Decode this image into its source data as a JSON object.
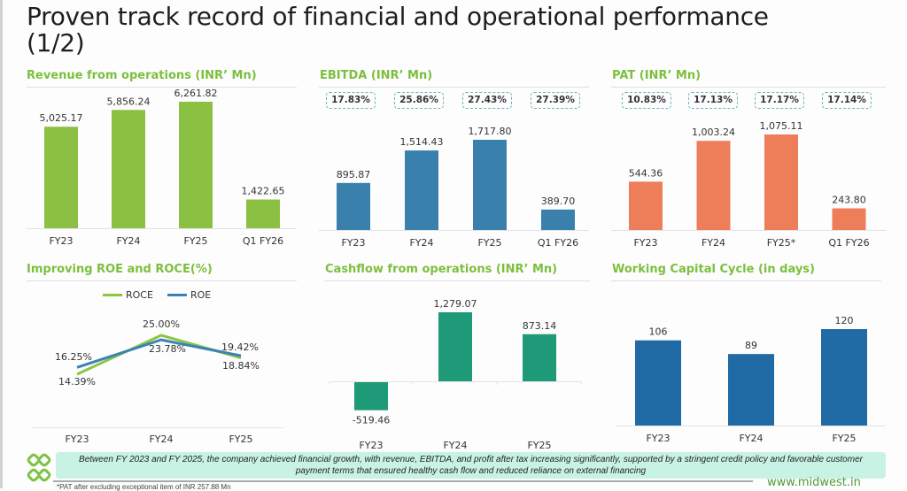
{
  "page": {
    "title_line1": "Proven track record of financial and operational performance",
    "title_line2": "(1/2)"
  },
  "colors": {
    "accent_green": "#7cbf3d",
    "revenue_bar": "#8bc043",
    "ebitda_bar": "#3a80ad",
    "pat_bar": "#ee7d59",
    "cashflow_bar": "#1f9a78",
    "wcc_bar": "#206aa6",
    "roce_line": "#8bc643",
    "roe_line": "#3b82b5",
    "margin_box_border": "#6bb5b9",
    "footer_box": "#c7f2e4"
  },
  "chart_data": [
    {
      "id": "revenue",
      "type": "bar",
      "title": "Revenue from operations (INR’ Mn)",
      "categories": [
        "FY23",
        "FY24",
        "FY25",
        "Q1 FY26"
      ],
      "values": [
        5025.17,
        5856.24,
        6261.82,
        1422.65
      ],
      "labels": [
        "5,025.17",
        "5,856.24",
        "6,261.82",
        "1,422.65"
      ],
      "ylim": [
        0,
        7300
      ],
      "xlabel": "",
      "ylabel": ""
    },
    {
      "id": "ebitda",
      "type": "bar",
      "title": "EBITDA (INR’ Mn)",
      "categories": [
        "FY23",
        "FY24",
        "FY25",
        "Q1 FY26"
      ],
      "values": [
        895.87,
        1514.43,
        1717.8,
        389.7
      ],
      "labels": [
        "895.87",
        "1,514.43",
        "1,717.80",
        "389.70"
      ],
      "margins": [
        "17.83%",
        "25.86%",
        "27.43%",
        "27.39%"
      ],
      "ylim": [
        0,
        1700
      ],
      "xlabel": "",
      "ylabel": ""
    },
    {
      "id": "pat",
      "type": "bar",
      "title": "PAT (INR’ Mn)",
      "categories": [
        "FY23",
        "FY24",
        "FY25*",
        "Q1 FY26"
      ],
      "values": [
        544.36,
        1003.24,
        1075.11,
        243.8
      ],
      "labels": [
        "544.36",
        "1,003.24",
        "1,075.11",
        "243.80"
      ],
      "margins": [
        "10.83%",
        "17.13%",
        "17.17%",
        "17.14%"
      ],
      "ylim": [
        0,
        1070
      ],
      "xlabel": "",
      "ylabel": ""
    },
    {
      "id": "roe_roce",
      "type": "line",
      "title": "Improving ROE and ROCE(%)",
      "categories": [
        "FY23",
        "FY24",
        "FY25"
      ],
      "series": [
        {
          "name": "ROCE",
          "values": [
            14.39,
            25.0,
            18.84
          ],
          "labels": [
            "14.39%",
            "25.00%",
            "18.84%"
          ]
        },
        {
          "name": "ROE",
          "values": [
            16.25,
            23.78,
            19.42
          ],
          "labels": [
            "16.25%",
            "23.78%",
            "19.42%"
          ]
        }
      ],
      "legend": "top-center",
      "xlabel": "",
      "ylabel": ""
    },
    {
      "id": "cashflow",
      "type": "bar",
      "title": "Cashflow from operations (INR’ Mn)",
      "categories": [
        "FY23",
        "FY24",
        "FY25"
      ],
      "values": [
        -519.46,
        1279.07,
        873.14
      ],
      "labels": [
        "-519.46",
        "1,279.07",
        "873.14"
      ],
      "ylim": [
        -1000,
        1600
      ],
      "xlabel": "",
      "ylabel": ""
    },
    {
      "id": "wcc",
      "type": "bar",
      "title": "Working Capital Cycle (in days)",
      "categories": [
        "FY23",
        "FY24",
        "FY25"
      ],
      "values": [
        106,
        89,
        120
      ],
      "labels": [
        "106",
        "89",
        "120"
      ],
      "ylim": [
        0,
        160
      ],
      "xlabel": "",
      "ylabel": ""
    }
  ],
  "footer": {
    "summary": "Between FY 2023 and FY 2025, the company achieved financial growth, with revenue, EBITDA, and profit after tax increasing significantly, supported by a stringent credit policy and favorable customer payment terms that ensured healthy cash flow and reduced reliance on external financing",
    "website": "www.midwest.in",
    "footnote": "*PAT after excluding exceptional item of INR 257.88 Mn",
    "logo_icon": "midwest-logo-icon"
  }
}
